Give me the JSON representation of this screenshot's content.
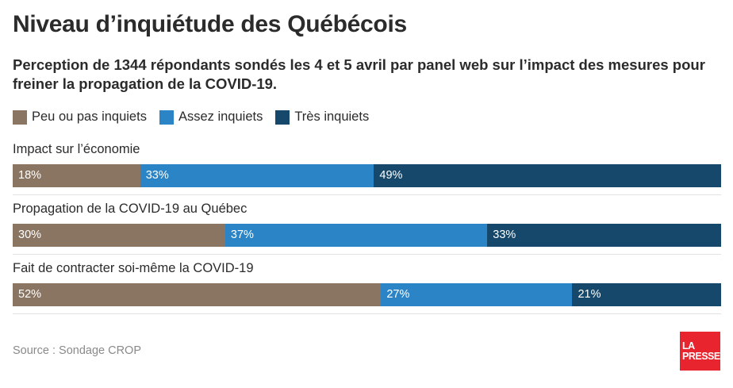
{
  "header": {
    "title": "Niveau d’inquiétude des Québécois",
    "subtitle": "Perception de 1344 répondants sondés les 4 et 5 avril par panel web sur l’impact des mesures pour freiner la propagation de la COVID-19."
  },
  "colors": {
    "peu": "#8a7563",
    "assez": "#2a84c6",
    "tres": "#15486a",
    "logo": "#e8242e"
  },
  "chart_data": {
    "type": "bar",
    "orientation": "horizontal",
    "stacked": true,
    "title": "Niveau d’inquiétude des Québécois",
    "subtitle": "Perception de 1344 répondants sondés les 4 et 5 avril par panel web sur l’impact des mesures pour freiner la propagation de la COVID-19.",
    "categories": [
      "Impact sur l’économie",
      "Propagation de la COVID-19 au Québec",
      "Fait de contracter soi-même la COVID-19"
    ],
    "series": [
      {
        "name": "Peu ou pas inquiets",
        "color": "#8a7563",
        "values": [
          18,
          30,
          52
        ]
      },
      {
        "name": "Assez inquiets",
        "color": "#2a84c6",
        "values": [
          33,
          37,
          27
        ]
      },
      {
        "name": "Très inquiets",
        "color": "#15486a",
        "values": [
          49,
          33,
          21
        ]
      }
    ],
    "value_suffix": "%",
    "xlim": [
      0,
      100
    ],
    "legend": "top-left",
    "grid": false
  },
  "footer": {
    "source": "Source : Sondage CROP",
    "logo_line1": "LA",
    "logo_line2": "PRESSE"
  }
}
